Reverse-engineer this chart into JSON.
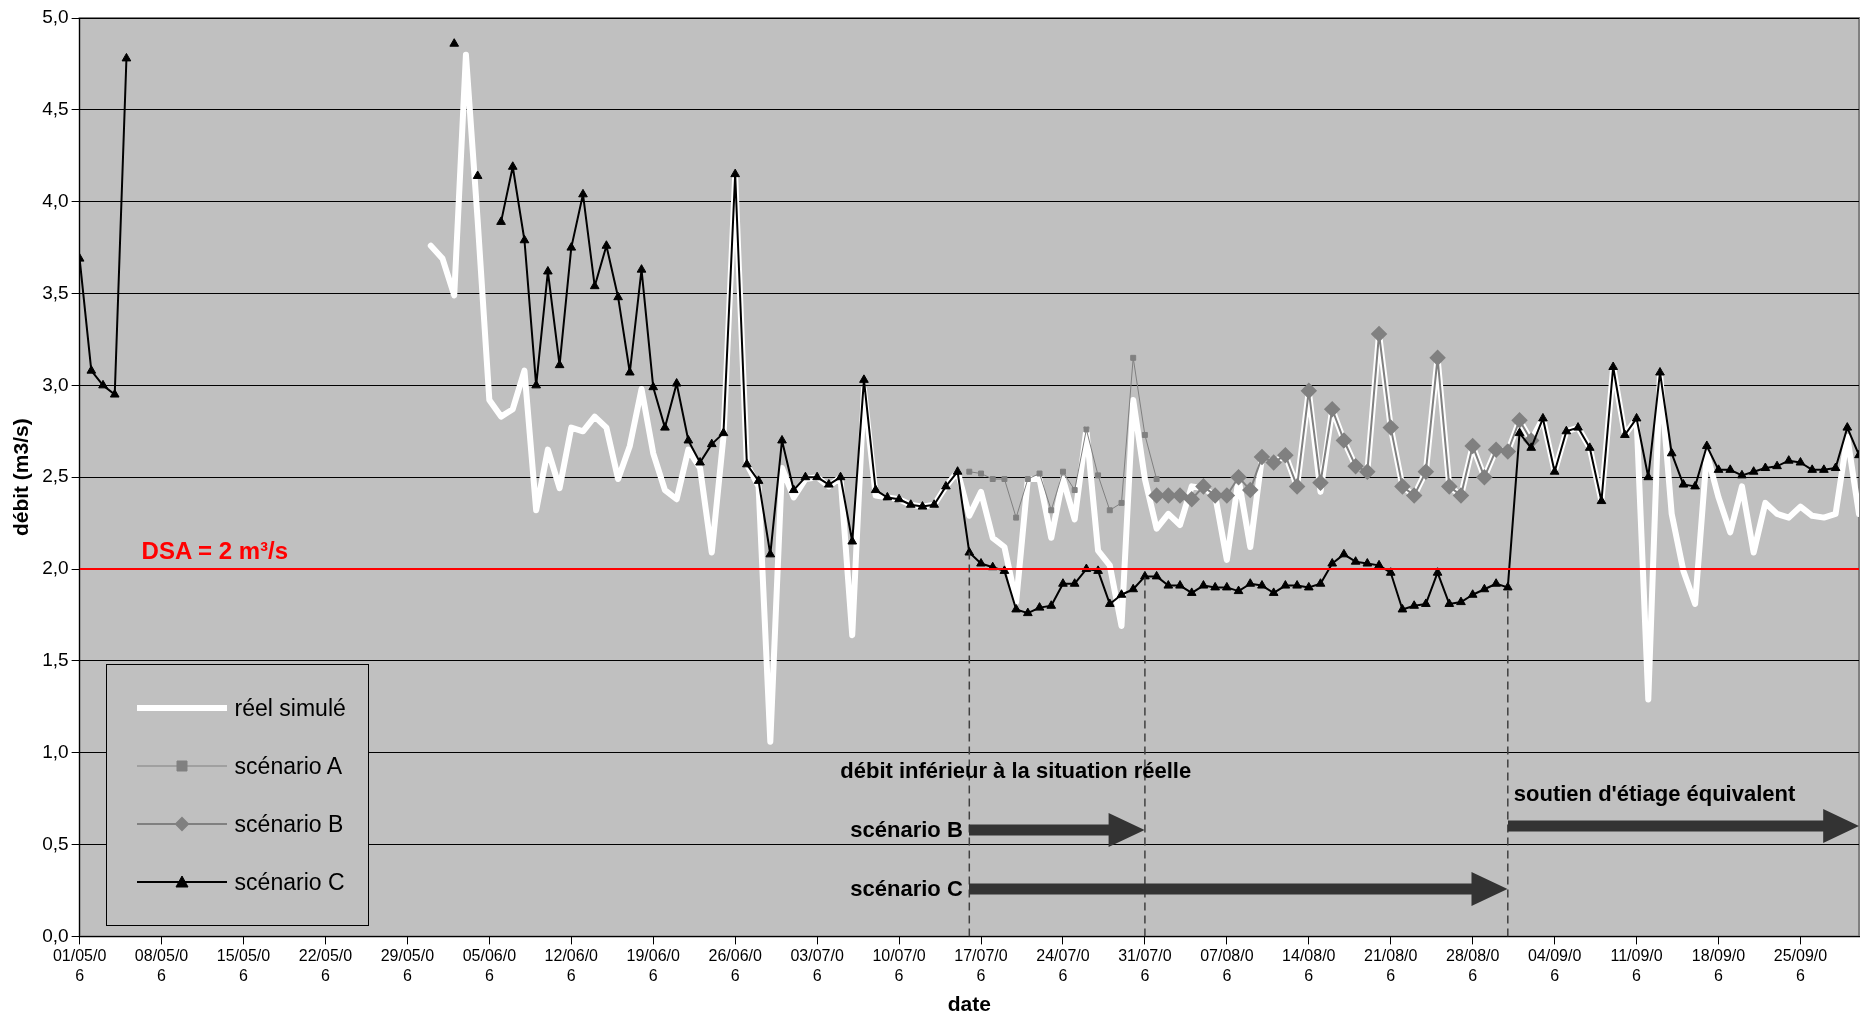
{
  "chart_data": {
    "type": "line",
    "xlabel": "date",
    "ylabel": "débit (m3/s)",
    "x": [
      "--05-01",
      "--05-02",
      "--05-03",
      "--05-04",
      "--05-05",
      "--05-06",
      "--05-07",
      "--05-08",
      "--05-09",
      "--05-10",
      "--05-11",
      "--05-12",
      "--05-13",
      "--05-14",
      "--05-15",
      "--05-16",
      "--05-17",
      "--05-18",
      "--05-19",
      "--05-20",
      "--05-21",
      "--05-22",
      "--05-23",
      "--05-24",
      "--05-25",
      "--05-26",
      "--05-27",
      "--05-28",
      "--05-29",
      "--05-30",
      "--05-31",
      "--06-01",
      "--06-02",
      "--06-03",
      "--06-04",
      "--06-05",
      "--06-06",
      "--06-07",
      "--06-08",
      "--06-09",
      "--06-10",
      "--06-11",
      "--06-12",
      "--06-13",
      "--06-14",
      "--06-15",
      "--06-16",
      "--06-17",
      "--06-18",
      "--06-19",
      "--06-20",
      "--06-21",
      "--06-22",
      "--06-23",
      "--06-24",
      "--06-25",
      "--06-26",
      "--06-27",
      "--06-28",
      "--06-29",
      "--06-30",
      "--07-01",
      "--07-02",
      "--07-03",
      "--07-04",
      "--07-05",
      "--07-06",
      "--07-07",
      "--07-08",
      "--07-09",
      "--07-10",
      "--07-11",
      "--07-12",
      "--07-13",
      "--07-14",
      "--07-15",
      "--07-16",
      "--07-17",
      "--07-18",
      "--07-19",
      "--07-20",
      "--07-21",
      "--07-22",
      "--07-23",
      "--07-24",
      "--07-25",
      "--07-26",
      "--07-27",
      "--07-28",
      "--07-29",
      "--07-30",
      "--07-31",
      "--08-01",
      "--08-02",
      "--08-03",
      "--08-04",
      "--08-05",
      "--08-06",
      "--08-07",
      "--08-08",
      "--08-09",
      "--08-10",
      "--08-11",
      "--08-12",
      "--08-13",
      "--08-14",
      "--08-15",
      "--08-16",
      "--08-17",
      "--08-18",
      "--08-19",
      "--08-20",
      "--08-21",
      "--08-22",
      "--08-23",
      "--08-24",
      "--08-25",
      "--08-26",
      "--08-27",
      "--08-28",
      "--08-29",
      "--08-30",
      "--08-31",
      "--09-01",
      "--09-02",
      "--09-03",
      "--09-04",
      "--09-05",
      "--09-06",
      "--09-07",
      "--09-08",
      "--09-09",
      "--09-10",
      "--09-11",
      "--09-12",
      "--09-13",
      "--09-14",
      "--09-15",
      "--09-16",
      "--09-17",
      "--09-18",
      "--09-19",
      "--09-20",
      "--09-21",
      "--09-22",
      "--09-23",
      "--09-24",
      "--09-25",
      "--09-26",
      "--09-27",
      "--09-28",
      "--09-29",
      "--09-30"
    ],
    "series": [
      {
        "name": "réel simulé",
        "color": "#ffffff",
        "marker": "none",
        "values": [
          null,
          null,
          null,
          null,
          null,
          null,
          null,
          null,
          null,
          null,
          null,
          null,
          null,
          null,
          null,
          null,
          null,
          null,
          null,
          null,
          null,
          null,
          null,
          null,
          null,
          null,
          null,
          null,
          null,
          null,
          3.76,
          3.69,
          3.49,
          4.8,
          3.9,
          2.92,
          2.83,
          2.87,
          3.08,
          2.32,
          2.65,
          2.44,
          2.77,
          2.75,
          2.83,
          2.77,
          2.49,
          2.67,
          2.98,
          2.63,
          2.43,
          2.38,
          2.65,
          2.55,
          2.09,
          2.72,
          4.14,
          2.57,
          2.45,
          1.06,
          2.55,
          2.39,
          2.49,
          2.5,
          2.45,
          2.5,
          1.64,
          2.98,
          2.4,
          2.39,
          2.38,
          2.35,
          2.34,
          2.35,
          2.45,
          2.53,
          2.29,
          2.42,
          2.17,
          2.12,
          1.82,
          2.49,
          2.49,
          2.17,
          2.49,
          2.27,
          2.76,
          2.1,
          2.02,
          1.69,
          2.92,
          2.49,
          2.22,
          2.3,
          2.24,
          2.45,
          2.44,
          2.4,
          2.05,
          2.49,
          2.12,
          2.61,
          2.58,
          2.62,
          2.45,
          2.97,
          2.42,
          2.87,
          2.7,
          2.56,
          2.53,
          3.28,
          2.77,
          2.45,
          2.4,
          2.53,
          3.15,
          2.45,
          2.4,
          2.67,
          2.5,
          2.65,
          2.64,
          2.81,
          2.7,
          2.82,
          2.53,
          2.75,
          2.77,
          2.66,
          2.37,
          3.1,
          2.73,
          2.82,
          1.29,
          3.07,
          2.3,
          1.99,
          1.81,
          2.63,
          2.39,
          2.2,
          2.45,
          2.09,
          2.36,
          2.3,
          2.28,
          2.34,
          2.29,
          2.28,
          2.3,
          2.72,
          2.3
        ]
      },
      {
        "name": "scénario A",
        "color": "#808080",
        "marker": "square",
        "values": [
          null,
          null,
          null,
          null,
          null,
          null,
          null,
          null,
          null,
          null,
          null,
          null,
          null,
          null,
          null,
          null,
          null,
          null,
          null,
          null,
          null,
          null,
          null,
          null,
          null,
          null,
          null,
          null,
          null,
          null,
          null,
          null,
          null,
          null,
          null,
          null,
          null,
          null,
          null,
          null,
          null,
          null,
          null,
          null,
          null,
          null,
          null,
          null,
          null,
          null,
          null,
          null,
          null,
          null,
          null,
          null,
          null,
          null,
          null,
          null,
          null,
          null,
          null,
          null,
          null,
          null,
          null,
          null,
          null,
          null,
          null,
          null,
          null,
          null,
          null,
          null,
          2.53,
          2.52,
          2.49,
          2.49,
          2.28,
          2.49,
          2.52,
          2.32,
          2.53,
          2.43,
          2.76,
          2.51,
          2.32,
          2.36,
          3.15,
          2.73,
          2.49,
          null,
          null,
          null,
          null,
          null,
          null,
          null,
          null,
          null,
          null,
          null,
          null,
          null,
          null,
          null,
          null,
          null,
          null,
          null,
          null,
          null,
          null,
          null,
          null,
          null,
          null,
          null,
          null,
          null,
          null,
          null,
          null,
          null,
          null,
          null,
          null,
          null,
          null,
          null,
          null,
          null,
          null,
          null,
          null,
          null,
          null,
          null,
          null,
          null,
          null,
          null,
          null,
          null,
          null,
          null,
          null,
          null,
          null,
          null,
          null
        ]
      },
      {
        "name": "scénario B",
        "color": "#808080",
        "marker": "diamond",
        "values": [
          null,
          null,
          null,
          null,
          null,
          null,
          null,
          null,
          null,
          null,
          null,
          null,
          null,
          null,
          null,
          null,
          null,
          null,
          null,
          null,
          null,
          null,
          null,
          null,
          null,
          null,
          null,
          null,
          null,
          null,
          null,
          null,
          null,
          null,
          null,
          null,
          null,
          null,
          null,
          null,
          null,
          null,
          null,
          null,
          null,
          null,
          null,
          null,
          null,
          null,
          null,
          null,
          null,
          null,
          null,
          null,
          null,
          null,
          null,
          null,
          null,
          null,
          null,
          null,
          null,
          null,
          null,
          null,
          null,
          null,
          null,
          null,
          null,
          null,
          null,
          null,
          null,
          null,
          null,
          null,
          null,
          null,
          null,
          null,
          null,
          null,
          null,
          null,
          null,
          null,
          null,
          null,
          2.4,
          2.4,
          2.4,
          2.38,
          2.45,
          2.4,
          2.4,
          2.5,
          2.43,
          2.61,
          2.58,
          2.62,
          2.45,
          2.97,
          2.47,
          2.87,
          2.7,
          2.56,
          2.53,
          3.28,
          2.77,
          2.45,
          2.4,
          2.53,
          3.15,
          2.45,
          2.4,
          2.67,
          2.5,
          2.65,
          2.64,
          2.81,
          2.7,
          null,
          null,
          null,
          null,
          null,
          null,
          null,
          null,
          null,
          null,
          null,
          null,
          null,
          null,
          null,
          null,
          null,
          null,
          null,
          null,
          null,
          null,
          null,
          null,
          null,
          null,
          null,
          null
        ]
      },
      {
        "name": "scénario C",
        "color": "#000000",
        "marker": "triangle",
        "values": [
          3.69,
          3.08,
          3.0,
          2.95,
          4.78,
          null,
          null,
          null,
          null,
          null,
          null,
          null,
          null,
          null,
          null,
          null,
          null,
          null,
          null,
          null,
          null,
          null,
          null,
          null,
          null,
          null,
          null,
          null,
          null,
          null,
          null,
          null,
          4.86,
          null,
          4.14,
          null,
          3.89,
          4.19,
          3.79,
          3.0,
          3.62,
          3.11,
          3.75,
          4.04,
          3.54,
          3.76,
          3.48,
          3.07,
          3.63,
          2.99,
          2.77,
          3.01,
          2.7,
          2.58,
          2.68,
          2.74,
          4.15,
          2.57,
          2.48,
          2.08,
          2.7,
          2.43,
          2.5,
          2.5,
          2.46,
          2.5,
          2.15,
          3.03,
          2.43,
          2.39,
          2.38,
          2.35,
          2.34,
          2.35,
          2.45,
          2.53,
          2.09,
          2.03,
          2.01,
          1.99,
          1.78,
          1.76,
          1.79,
          1.8,
          1.92,
          1.92,
          2.0,
          1.99,
          1.81,
          1.86,
          1.89,
          1.96,
          1.96,
          1.91,
          1.91,
          1.87,
          1.91,
          1.9,
          1.9,
          1.88,
          1.92,
          1.91,
          1.87,
          1.91,
          1.91,
          1.9,
          1.92,
          2.03,
          2.08,
          2.04,
          2.03,
          2.02,
          1.98,
          1.78,
          1.8,
          1.81,
          1.98,
          1.81,
          1.82,
          1.86,
          1.89,
          1.92,
          1.9,
          2.74,
          2.66,
          2.82,
          2.53,
          2.75,
          2.77,
          2.66,
          2.37,
          3.1,
          2.73,
          2.82,
          2.5,
          3.07,
          2.63,
          2.46,
          2.45,
          2.67,
          2.54,
          2.54,
          2.51,
          2.53,
          2.55,
          2.56,
          2.59,
          2.58,
          2.54,
          2.54,
          2.55,
          2.77,
          2.62
        ]
      }
    ],
    "xlim": [
      "--05-01",
      "--09-30"
    ],
    "xticks": [
      {
        "value": "--05-01",
        "label": "01/05/06"
      },
      {
        "value": "--05-08",
        "label": "08/05/06"
      },
      {
        "value": "--05-15",
        "label": "15/05/06"
      },
      {
        "value": "--05-22",
        "label": "22/05/06"
      },
      {
        "value": "--05-29",
        "label": "29/05/06"
      },
      {
        "value": "--06-05",
        "label": "05/06/06"
      },
      {
        "value": "--06-12",
        "label": "12/06/06"
      },
      {
        "value": "--06-19",
        "label": "19/06/06"
      },
      {
        "value": "--06-26",
        "label": "26/06/06"
      },
      {
        "value": "--07-03",
        "label": "03/07/06"
      },
      {
        "value": "--07-10",
        "label": "10/07/06"
      },
      {
        "value": "--07-17",
        "label": "17/07/06"
      },
      {
        "value": "--07-24",
        "label": "24/07/06"
      },
      {
        "value": "--07-31",
        "label": "31/07/06"
      },
      {
        "value": "--08-07",
        "label": "07/08/06"
      },
      {
        "value": "--08-14",
        "label": "14/08/06"
      },
      {
        "value": "--08-21",
        "label": "21/08/06"
      },
      {
        "value": "--08-28",
        "label": "28/08/06"
      },
      {
        "value": "--09-04",
        "label": "04/09/06"
      },
      {
        "value": "--09-11",
        "label": "11/09/06"
      },
      {
        "value": "--09-18",
        "label": "18/09/06"
      },
      {
        "value": "--09-25",
        "label": "25/09/06"
      }
    ],
    "ylim": [
      0,
      5
    ],
    "yticks": [
      {
        "value": 0,
        "label": "0,0"
      },
      {
        "value": 0.5,
        "label": "0,5"
      },
      {
        "value": 1,
        "label": "1,0"
      },
      {
        "value": 1.5,
        "label": "1,5"
      },
      {
        "value": 2,
        "label": "2,0"
      },
      {
        "value": 2.5,
        "label": "2,5"
      },
      {
        "value": 3,
        "label": "3,0"
      },
      {
        "value": 3.5,
        "label": "3,5"
      },
      {
        "value": 4,
        "label": "4,0"
      },
      {
        "value": 4.5,
        "label": "4,5"
      },
      {
        "value": 5,
        "label": "5,0"
      }
    ],
    "grid": "y",
    "legend": "bottom left",
    "ref_lines": [
      {
        "axis": "y",
        "value": 2,
        "label": "DSA = 2 m³/s",
        "color": "#ff0000"
      },
      {
        "axis": "x",
        "value": "--07-16",
        "color": "#404040",
        "line_style": "dashed"
      },
      {
        "axis": "x",
        "value": "--07-31",
        "color": "#404040",
        "line_style": "dashed"
      },
      {
        "axis": "x",
        "value": "--08-31",
        "color": "#404040",
        "line_style": "dashed"
      }
    ],
    "annotations": [
      "débit inférieur à la situation réelle",
      {
        "text": "scénario B",
        "x": "--07-16",
        "y": 0.58
      },
      {
        "text": "scénario C",
        "x": "--07-16",
        "y": 0.26
      },
      {
        "text": "soutien d'étiage équivalent",
        "x": "--08-31",
        "y": 0.6
      }
    ]
  }
}
